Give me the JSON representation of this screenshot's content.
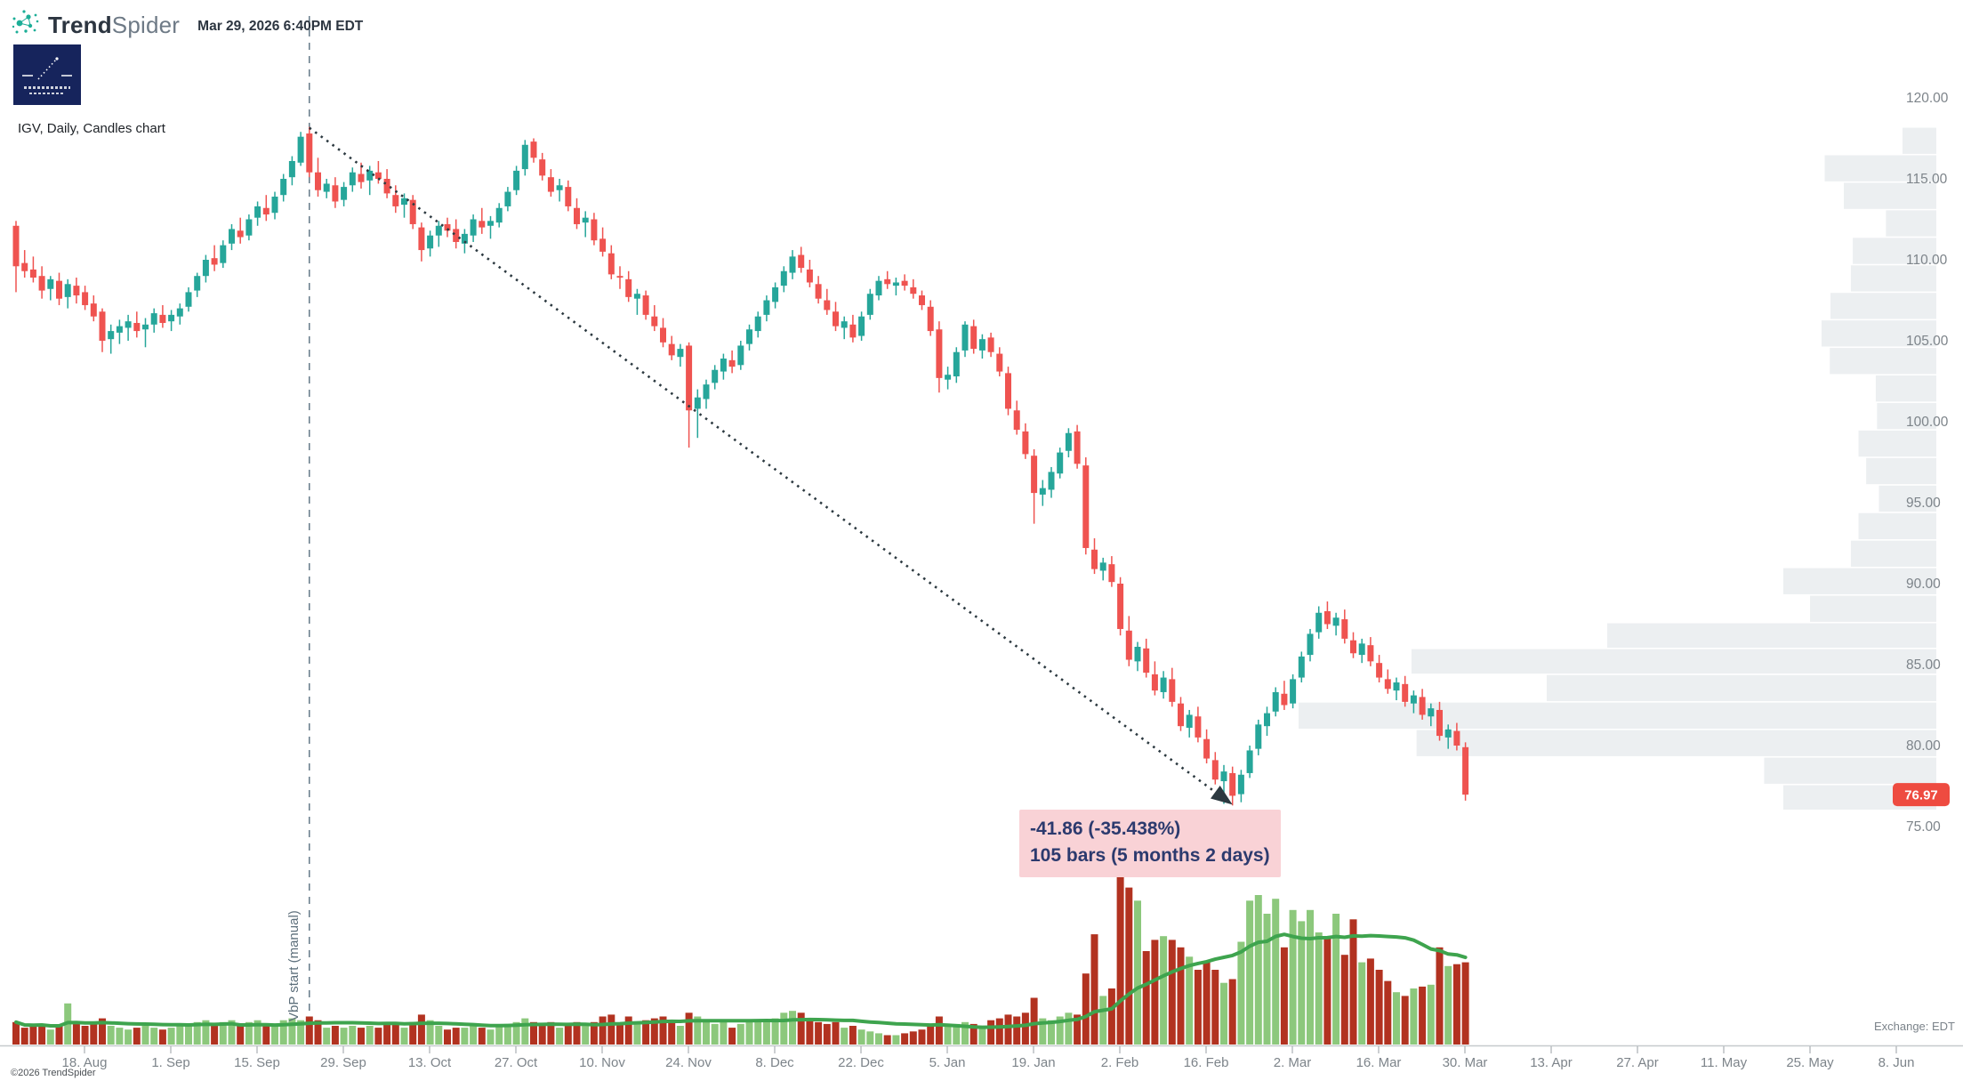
{
  "header": {
    "brand_bold": "Trend",
    "brand_light": "Spider",
    "timestamp": "Mar 29, 2026 6:40PM EDT"
  },
  "chart_label": "IGV, Daily, Candles chart",
  "annotation": {
    "line1": "-41.86 (-35.438%)",
    "line2": "105 bars (5 months 2 days)"
  },
  "vbp_label": "VbP start (manual)",
  "exchange_label": "Exchange: EDT",
  "copyright": "©2026 TrendSpider",
  "price_tag": {
    "value": "76.97",
    "color": "#ee4b40"
  },
  "colors": {
    "candle_up": "#26a69a",
    "candle_down": "#ef5350",
    "volume_up": "#8cc87c",
    "volume_down": "#b23220",
    "volume_ma": "#3ea44e",
    "profile": "#eceff1",
    "axis_line": "#c6cacd",
    "tick_text": "#7d848a",
    "dashed_line": "#5a7080",
    "trendline": "#2c3940",
    "tag_text": "#ffffff"
  },
  "chart_data": {
    "type": "candlestick",
    "symbol": "IGV",
    "timeframe": "Daily",
    "last_price": 76.97,
    "price_axis": {
      "min": 75,
      "max": 120,
      "step": 5,
      "labels": [
        "120.00",
        "115.00",
        "110.00",
        "105.00",
        "100.00",
        "95.00",
        "90.00",
        "85.00",
        "80.00",
        "75.00"
      ],
      "values": [
        120,
        115,
        110,
        105,
        100,
        95,
        90,
        85,
        80,
        75
      ]
    },
    "x_ticks": [
      "18. Aug",
      "1. Sep",
      "15. Sep",
      "29. Sep",
      "13. Oct",
      "27. Oct",
      "10. Nov",
      "24. Nov",
      "8. Dec",
      "22. Dec",
      "5. Jan",
      "19. Jan",
      "2. Feb",
      "16. Feb",
      "2. Mar",
      "16. Mar",
      "30. Mar",
      "13. Apr",
      "27. Apr",
      "11. May",
      "25. May",
      "8. Jun"
    ],
    "vbp_line_index": 34,
    "trendline": {
      "start_index": 34,
      "start_price": 118.15,
      "end_index": 141,
      "end_price": 76.35
    },
    "candles": [
      [
        112.1,
        112.4,
        108.0,
        109.6,
        12
      ],
      [
        109.8,
        110.6,
        108.9,
        109.3,
        9
      ],
      [
        109.4,
        110.2,
        108.6,
        108.9,
        10
      ],
      [
        109.0,
        109.6,
        107.6,
        108.1,
        11
      ],
      [
        108.2,
        109.0,
        107.5,
        108.8,
        8
      ],
      [
        108.7,
        109.2,
        107.2,
        107.6,
        10
      ],
      [
        107.7,
        108.8,
        107.0,
        108.5,
        22
      ],
      [
        108.4,
        108.9,
        107.3,
        107.8,
        12
      ],
      [
        108.0,
        108.4,
        106.9,
        107.2,
        10
      ],
      [
        107.3,
        107.8,
        106.2,
        106.5,
        11
      ],
      [
        106.8,
        107.0,
        104.3,
        105.0,
        14
      ],
      [
        105.1,
        106.0,
        104.2,
        105.6,
        10
      ],
      [
        105.5,
        106.3,
        104.8,
        105.9,
        9
      ],
      [
        105.8,
        106.6,
        105.0,
        106.2,
        8
      ],
      [
        106.1,
        106.8,
        105.2,
        105.6,
        9
      ],
      [
        105.7,
        106.4,
        104.6,
        106.0,
        10
      ],
      [
        106.0,
        107.0,
        105.5,
        106.7,
        9
      ],
      [
        106.6,
        107.2,
        105.8,
        106.1,
        8
      ],
      [
        106.2,
        106.9,
        105.6,
        106.6,
        9
      ],
      [
        106.5,
        107.3,
        106.0,
        107.0,
        10
      ],
      [
        107.1,
        108.3,
        106.8,
        108.0,
        11
      ],
      [
        108.1,
        109.2,
        107.7,
        109.0,
        12
      ],
      [
        109.0,
        110.3,
        108.6,
        110.0,
        13
      ],
      [
        110.1,
        110.9,
        109.3,
        109.7,
        10
      ],
      [
        109.8,
        111.2,
        109.5,
        110.9,
        12
      ],
      [
        111.0,
        112.2,
        110.6,
        111.9,
        13
      ],
      [
        111.8,
        112.6,
        111.0,
        111.4,
        10
      ],
      [
        111.5,
        112.8,
        111.2,
        112.5,
        12
      ],
      [
        112.6,
        113.6,
        112.1,
        113.3,
        13
      ],
      [
        113.2,
        114.0,
        112.4,
        112.8,
        10
      ],
      [
        112.9,
        114.2,
        112.5,
        113.9,
        11
      ],
      [
        114.0,
        115.3,
        113.6,
        115.0,
        13
      ],
      [
        115.1,
        116.4,
        114.6,
        116.1,
        14
      ],
      [
        116.0,
        117.9,
        115.8,
        117.6,
        13
      ],
      [
        117.8,
        118.2,
        115.1,
        115.4,
        15
      ],
      [
        115.4,
        116.3,
        113.9,
        114.3,
        13
      ],
      [
        114.2,
        115.0,
        113.8,
        114.7,
        9
      ],
      [
        114.6,
        115.1,
        113.2,
        113.6,
        10
      ],
      [
        113.7,
        114.8,
        113.3,
        114.5,
        9
      ],
      [
        114.6,
        115.7,
        114.2,
        115.4,
        10
      ],
      [
        115.3,
        116.0,
        114.4,
        114.8,
        9
      ],
      [
        114.9,
        115.8,
        114.0,
        115.5,
        10
      ],
      [
        115.4,
        116.1,
        114.7,
        115.0,
        9
      ],
      [
        115.0,
        115.6,
        113.8,
        114.1,
        11
      ],
      [
        114.0,
        114.6,
        112.9,
        113.3,
        12
      ],
      [
        113.4,
        114.1,
        112.6,
        113.8,
        9
      ],
      [
        113.7,
        114.0,
        111.9,
        112.2,
        12
      ],
      [
        112.0,
        112.3,
        109.9,
        110.6,
        16
      ],
      [
        110.7,
        111.8,
        110.2,
        111.5,
        13
      ],
      [
        111.5,
        112.4,
        110.8,
        112.1,
        10
      ],
      [
        112.2,
        112.6,
        111.4,
        111.8,
        8
      ],
      [
        111.9,
        112.5,
        110.7,
        111.1,
        9
      ],
      [
        111.0,
        111.9,
        110.4,
        111.6,
        9
      ],
      [
        111.5,
        112.8,
        111.1,
        112.5,
        10
      ],
      [
        112.4,
        113.2,
        111.6,
        112.0,
        9
      ],
      [
        112.1,
        112.7,
        111.3,
        112.4,
        8
      ],
      [
        112.3,
        113.5,
        112.0,
        113.2,
        10
      ],
      [
        113.3,
        114.5,
        113.0,
        114.2,
        11
      ],
      [
        114.3,
        115.8,
        114.0,
        115.5,
        12
      ],
      [
        115.6,
        117.4,
        115.2,
        117.1,
        14
      ],
      [
        117.3,
        117.5,
        116.0,
        116.3,
        12
      ],
      [
        116.2,
        116.6,
        114.9,
        115.2,
        11
      ],
      [
        115.1,
        115.6,
        113.9,
        114.2,
        12
      ],
      [
        114.3,
        115.0,
        113.6,
        114.6,
        9
      ],
      [
        114.5,
        114.9,
        113.0,
        113.3,
        11
      ],
      [
        113.2,
        113.8,
        111.9,
        112.2,
        12
      ],
      [
        112.3,
        113.0,
        111.4,
        112.6,
        10
      ],
      [
        112.5,
        112.9,
        110.9,
        111.2,
        12
      ],
      [
        111.3,
        112.0,
        110.2,
        110.5,
        15
      ],
      [
        110.4,
        110.9,
        108.8,
        109.1,
        16
      ],
      [
        109.0,
        109.6,
        108.2,
        108.9,
        11
      ],
      [
        108.8,
        109.3,
        107.4,
        107.7,
        15
      ],
      [
        107.6,
        108.2,
        106.6,
        107.9,
        12
      ],
      [
        107.8,
        108.1,
        106.3,
        106.6,
        13
      ],
      [
        106.5,
        107.2,
        105.6,
        105.9,
        14
      ],
      [
        105.8,
        106.4,
        104.6,
        104.9,
        15
      ],
      [
        104.8,
        105.3,
        103.8,
        104.1,
        12
      ],
      [
        104.0,
        104.8,
        103.4,
        104.5,
        10
      ],
      [
        104.7,
        104.9,
        98.4,
        100.7,
        17
      ],
      [
        100.8,
        102.0,
        99.0,
        101.5,
        15
      ],
      [
        101.4,
        102.6,
        100.8,
        102.3,
        12
      ],
      [
        102.4,
        103.5,
        102.0,
        103.2,
        11
      ],
      [
        103.1,
        104.2,
        102.6,
        103.9,
        12
      ],
      [
        103.8,
        104.4,
        103.0,
        103.4,
        9
      ],
      [
        103.5,
        105.0,
        103.2,
        104.7,
        11
      ],
      [
        104.8,
        106.0,
        104.4,
        105.7,
        12
      ],
      [
        105.6,
        106.8,
        105.2,
        106.5,
        12
      ],
      [
        106.6,
        107.8,
        106.2,
        107.5,
        13
      ],
      [
        107.4,
        108.6,
        107.0,
        108.3,
        14
      ],
      [
        108.4,
        109.6,
        108.0,
        109.3,
        17
      ],
      [
        109.2,
        110.6,
        108.8,
        110.2,
        18
      ],
      [
        110.3,
        110.8,
        109.2,
        109.5,
        17
      ],
      [
        109.4,
        110.0,
        108.3,
        108.6,
        14
      ],
      [
        108.5,
        109.0,
        107.3,
        107.6,
        12
      ],
      [
        107.5,
        108.2,
        106.6,
        106.9,
        11
      ],
      [
        106.8,
        107.4,
        105.6,
        105.9,
        12
      ],
      [
        105.8,
        106.5,
        105.1,
        106.2,
        9
      ],
      [
        106.0,
        106.6,
        104.9,
        105.2,
        10
      ],
      [
        105.3,
        106.8,
        105.0,
        106.5,
        8
      ],
      [
        106.6,
        108.2,
        106.3,
        107.9,
        7
      ],
      [
        107.8,
        109.0,
        107.5,
        108.7,
        6
      ],
      [
        108.8,
        109.3,
        108.2,
        108.5,
        5
      ],
      [
        108.4,
        108.9,
        107.8,
        108.6,
        5
      ],
      [
        108.7,
        109.1,
        108.1,
        108.4,
        6
      ],
      [
        108.3,
        108.8,
        107.6,
        107.9,
        7
      ],
      [
        107.8,
        108.1,
        106.9,
        107.2,
        8
      ],
      [
        107.1,
        107.5,
        105.3,
        105.6,
        10
      ],
      [
        105.7,
        106.2,
        101.8,
        102.7,
        15
      ],
      [
        102.6,
        103.4,
        102.0,
        102.9,
        10
      ],
      [
        102.8,
        104.6,
        102.4,
        104.3,
        11
      ],
      [
        104.4,
        106.2,
        104.0,
        106.0,
        12
      ],
      [
        105.9,
        106.3,
        104.2,
        104.5,
        11
      ],
      [
        104.4,
        105.4,
        103.9,
        105.1,
        10
      ],
      [
        105.2,
        105.5,
        104.0,
        104.3,
        13
      ],
      [
        104.2,
        104.6,
        102.8,
        103.1,
        14
      ],
      [
        103.0,
        103.4,
        100.4,
        100.8,
        16
      ],
      [
        100.7,
        101.3,
        99.2,
        99.5,
        15
      ],
      [
        99.4,
        99.9,
        97.7,
        98.0,
        17
      ],
      [
        97.9,
        98.3,
        93.7,
        95.6,
        25
      ],
      [
        95.5,
        96.4,
        94.8,
        95.9,
        14
      ],
      [
        95.8,
        97.2,
        95.3,
        96.9,
        13
      ],
      [
        96.8,
        98.4,
        96.5,
        98.1,
        15
      ],
      [
        98.2,
        99.6,
        97.8,
        99.3,
        17
      ],
      [
        99.4,
        99.8,
        97.1,
        97.4,
        16
      ],
      [
        97.3,
        97.8,
        91.8,
        92.2,
        38
      ],
      [
        92.1,
        92.8,
        90.6,
        90.9,
        59
      ],
      [
        90.8,
        91.6,
        90.2,
        91.3,
        26
      ],
      [
        91.2,
        91.7,
        89.8,
        90.1,
        30
      ],
      [
        90.0,
        90.4,
        86.8,
        87.2,
        95
      ],
      [
        87.1,
        88.0,
        84.9,
        85.3,
        84
      ],
      [
        85.2,
        86.4,
        84.6,
        86.1,
        77
      ],
      [
        86.0,
        86.6,
        84.2,
        84.5,
        50
      ],
      [
        84.4,
        85.2,
        83.1,
        83.4,
        56
      ],
      [
        83.3,
        84.6,
        82.9,
        84.2,
        58
      ],
      [
        84.1,
        84.8,
        82.4,
        82.7,
        56
      ],
      [
        82.6,
        83.0,
        80.9,
        81.2,
        52
      ],
      [
        81.1,
        82.2,
        80.5,
        81.9,
        47
      ],
      [
        81.8,
        82.4,
        80.2,
        80.5,
        40
      ],
      [
        80.4,
        81.0,
        78.9,
        79.2,
        44
      ],
      [
        79.1,
        79.6,
        77.6,
        77.9,
        40
      ],
      [
        77.8,
        78.8,
        76.4,
        78.4,
        33
      ],
      [
        78.3,
        78.7,
        76.3,
        76.9,
        35
      ],
      [
        77.0,
        78.5,
        76.5,
        78.2,
        55
      ],
      [
        78.3,
        80.0,
        78.0,
        79.7,
        77
      ],
      [
        79.8,
        81.6,
        79.4,
        81.3,
        80
      ],
      [
        81.2,
        82.4,
        80.6,
        82.0,
        70
      ],
      [
        82.1,
        83.6,
        81.8,
        83.3,
        78
      ],
      [
        83.2,
        84.0,
        82.2,
        82.5,
        52
      ],
      [
        82.6,
        84.4,
        82.3,
        84.1,
        72
      ],
      [
        84.2,
        85.8,
        83.9,
        85.5,
        66
      ],
      [
        85.6,
        87.2,
        85.2,
        86.9,
        72
      ],
      [
        87.0,
        88.6,
        86.6,
        88.2,
        60
      ],
      [
        88.3,
        88.9,
        87.2,
        87.5,
        57
      ],
      [
        87.4,
        88.2,
        86.8,
        87.9,
        70
      ],
      [
        87.8,
        88.4,
        86.3,
        86.6,
        48
      ],
      [
        86.5,
        87.0,
        85.4,
        85.7,
        67
      ],
      [
        85.6,
        86.6,
        85.1,
        86.3,
        44
      ],
      [
        86.2,
        86.7,
        84.9,
        85.2,
        46
      ],
      [
        85.1,
        85.6,
        83.9,
        84.2,
        40
      ],
      [
        84.1,
        84.7,
        83.2,
        83.5,
        34
      ],
      [
        83.4,
        84.2,
        82.8,
        83.9,
        28
      ],
      [
        83.8,
        84.3,
        82.4,
        82.7,
        26
      ],
      [
        82.6,
        83.4,
        82.0,
        83.1,
        30
      ],
      [
        83.0,
        83.5,
        81.6,
        81.9,
        31
      ],
      [
        81.8,
        82.6,
        81.2,
        82.3,
        32
      ],
      [
        82.2,
        82.7,
        80.3,
        80.6,
        52
      ],
      [
        80.5,
        81.3,
        79.8,
        81.0,
        42
      ],
      [
        80.9,
        81.4,
        79.7,
        80.0,
        43
      ],
      [
        79.9,
        80.2,
        76.6,
        76.97,
        44
      ]
    ],
    "volume_profile": [
      [
        118.2,
        116.5,
        0.053
      ],
      [
        116.5,
        114.8,
        0.175
      ],
      [
        114.8,
        113.1,
        0.145
      ],
      [
        113.1,
        111.4,
        0.079
      ],
      [
        111.4,
        109.7,
        0.131
      ],
      [
        109.7,
        108.0,
        0.134
      ],
      [
        108.0,
        106.3,
        0.166
      ],
      [
        106.3,
        104.6,
        0.18
      ],
      [
        104.6,
        102.9,
        0.167
      ],
      [
        102.9,
        101.2,
        0.095
      ],
      [
        101.2,
        99.5,
        0.093
      ],
      [
        99.5,
        97.8,
        0.122
      ],
      [
        97.8,
        96.1,
        0.11
      ],
      [
        96.1,
        94.4,
        0.09
      ],
      [
        94.4,
        92.7,
        0.122
      ],
      [
        92.7,
        91.0,
        0.134
      ],
      [
        91.0,
        89.3,
        0.24
      ],
      [
        89.3,
        87.6,
        0.198
      ],
      [
        87.6,
        86.0,
        0.516
      ],
      [
        86.0,
        84.4,
        0.823
      ],
      [
        84.4,
        82.7,
        0.611
      ],
      [
        82.7,
        81.0,
        1.0
      ],
      [
        81.0,
        79.3,
        0.815
      ],
      [
        79.3,
        77.6,
        0.27
      ],
      [
        77.6,
        76.0,
        0.24
      ]
    ]
  }
}
